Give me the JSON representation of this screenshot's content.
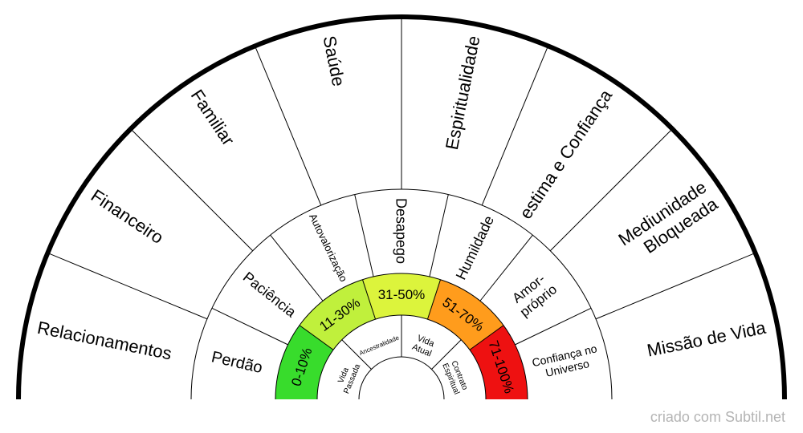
{
  "rings": {
    "inner": {
      "segments": [
        {
          "lines": [
            "Vida",
            "Passada"
          ]
        },
        {
          "lines": [
            "Ancestralidade"
          ]
        },
        {
          "lines": [
            "Vida",
            "Atual"
          ]
        },
        {
          "lines": [
            "Contrato",
            "Espiritual"
          ]
        }
      ]
    },
    "percent": {
      "segments": [
        {
          "lines": [
            "0-10%"
          ],
          "color": "#38dc2c"
        },
        {
          "lines": [
            "11-30%"
          ],
          "color": "#c0f03c"
        },
        {
          "lines": [
            "31-50%"
          ],
          "color": "#dcf43c"
        },
        {
          "lines": [
            "51-70%"
          ],
          "color": "#ff9c1c"
        },
        {
          "lines": [
            "71-100%"
          ],
          "color": "#ee1111"
        }
      ]
    },
    "middle": {
      "segments": [
        {
          "lines": [
            "Perdão"
          ]
        },
        {
          "lines": [
            "Paciência"
          ]
        },
        {
          "lines": [
            "Autovalorização"
          ]
        },
        {
          "lines": [
            "Desapego"
          ]
        },
        {
          "lines": [
            "Humildade"
          ]
        },
        {
          "lines": [
            "Amor-",
            "próprio"
          ]
        },
        {
          "lines": [
            "Confiança no",
            "Universo"
          ]
        }
      ]
    },
    "outer": {
      "segments": [
        {
          "lines": [
            "Relacionamentos"
          ]
        },
        {
          "lines": [
            "Financeiro"
          ]
        },
        {
          "lines": [
            "Familiar"
          ]
        },
        {
          "lines": [
            "Saúde"
          ]
        },
        {
          "lines": [
            "Espiritualidade"
          ]
        },
        {
          "lines": [
            "estima e Confiança"
          ]
        },
        {
          "lines": [
            "Mediunidade",
            "Bloqueada"
          ]
        },
        {
          "lines": [
            "Missão de Vida"
          ]
        }
      ]
    }
  },
  "footer": {
    "text": "criado com Subtil.net",
    "color": "#b4b4b4"
  },
  "colors": {
    "line": "#000000",
    "background": "#ffffff",
    "label": "#000000"
  }
}
